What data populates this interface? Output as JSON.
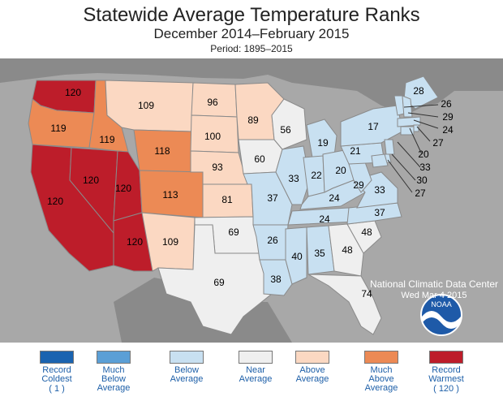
{
  "header": {
    "title": "Statewide Average Temperature Ranks",
    "subtitle": "December 2014–February 2015",
    "period": "Period: 1895–2015"
  },
  "colors": {
    "record_coldest": "#1a63b0",
    "much_below": "#5b9fd6",
    "below": "#c8e0f1",
    "near": "#efefef",
    "above": "#fbd8c2",
    "much_above": "#ec8a55",
    "record_warmest": "#bd1d2a",
    "background_land": "#808080",
    "ocean": "#a8a8a8"
  },
  "state_ranks": {
    "WA": "120",
    "OR": "119",
    "CA": "120",
    "NV": "120",
    "ID": "119",
    "MT": "109",
    "WY": "118",
    "UT": "120",
    "AZ": "120",
    "CO": "113",
    "NM": "109",
    "ND": "96",
    "SD": "100",
    "NE": "93",
    "KS": "81",
    "OK": "69",
    "TX": "69",
    "MN": "89",
    "IA": "60",
    "MO": "37",
    "AR": "26",
    "LA": "38",
    "WI": "56",
    "IL": "33",
    "MI": "19",
    "IN": "22",
    "OH": "20",
    "KY": "24",
    "TN": "24",
    "MS": "40",
    "AL": "35",
    "GA": "48",
    "FL": "74",
    "SC": "48",
    "NC": "37",
    "VA": "33",
    "WV": "29",
    "PA": "21",
    "NY": "17",
    "ME": "28",
    "VT": "26",
    "NH": "29",
    "MA": "24",
    "RI": "27",
    "CT": "20",
    "NJ": "33",
    "DE": "30",
    "MD": "27"
  },
  "legend": [
    {
      "label": [
        "Record",
        "Coldest"
      ],
      "extra": "( 1 )",
      "color_key": "record_coldest"
    },
    {
      "label": [
        "Much",
        "Below",
        "Average"
      ],
      "extra": "",
      "color_key": "much_below"
    },
    {
      "label": [
        "Below",
        "Average"
      ],
      "extra": "",
      "color_key": "below"
    },
    {
      "label": [
        "Near",
        "Average"
      ],
      "extra": "",
      "color_key": "near"
    },
    {
      "label": [
        "Above",
        "Average"
      ],
      "extra": "",
      "color_key": "above"
    },
    {
      "label": [
        "Much",
        "Above",
        "Average"
      ],
      "extra": "",
      "color_key": "much_above"
    },
    {
      "label": [
        "Record",
        "Warmest"
      ],
      "extra": "( 120 )",
      "color_key": "record_warmest"
    }
  ],
  "agency": {
    "logo_text": "NOAA",
    "name": "National Climatic Data Center",
    "date": "Wed Mar  4 2015"
  }
}
